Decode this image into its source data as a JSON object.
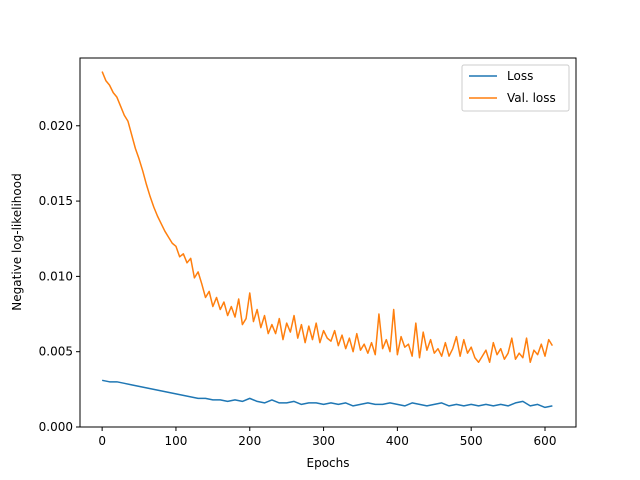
{
  "chart_data": {
    "type": "line",
    "xlabel": "Epochs",
    "ylabel": "Negative log-likelihood",
    "xlim": [
      -30,
      642
    ],
    "ylim": [
      0.0,
      0.0245
    ],
    "xticks": [
      0,
      100,
      200,
      300,
      400,
      500,
      600
    ],
    "xtick_labels": [
      "0",
      "100",
      "200",
      "300",
      "400",
      "500",
      "600"
    ],
    "yticks": [
      0.0,
      0.005,
      0.01,
      0.015,
      0.02
    ],
    "ytick_labels": [
      "0.000",
      "0.005",
      "0.010",
      "0.015",
      "0.020"
    ],
    "grid": false,
    "legend_position": "top-right",
    "series": [
      {
        "name": "Loss",
        "color": "#1f77b4",
        "x": [
          0,
          10,
          20,
          30,
          40,
          50,
          60,
          70,
          80,
          90,
          100,
          110,
          120,
          130,
          140,
          150,
          160,
          170,
          180,
          190,
          200,
          210,
          220,
          230,
          240,
          250,
          260,
          270,
          280,
          290,
          300,
          310,
          320,
          330,
          340,
          350,
          360,
          370,
          380,
          390,
          400,
          410,
          420,
          430,
          440,
          450,
          460,
          470,
          480,
          490,
          500,
          510,
          520,
          530,
          540,
          550,
          560,
          570,
          580,
          590,
          600,
          610
        ],
        "y": [
          0.0031,
          0.003,
          0.003,
          0.0029,
          0.0028,
          0.0027,
          0.0026,
          0.0025,
          0.0024,
          0.0023,
          0.0022,
          0.0021,
          0.002,
          0.0019,
          0.0019,
          0.0018,
          0.0018,
          0.0017,
          0.0018,
          0.0017,
          0.0019,
          0.0017,
          0.0016,
          0.0018,
          0.0016,
          0.0016,
          0.0017,
          0.0015,
          0.0016,
          0.0016,
          0.0015,
          0.0016,
          0.0015,
          0.0016,
          0.0014,
          0.0015,
          0.0016,
          0.0015,
          0.0015,
          0.0016,
          0.0015,
          0.0014,
          0.0016,
          0.0015,
          0.0014,
          0.0015,
          0.0016,
          0.0014,
          0.0015,
          0.0014,
          0.0015,
          0.0014,
          0.0015,
          0.0014,
          0.0015,
          0.0014,
          0.0016,
          0.0017,
          0.0014,
          0.0015,
          0.0013,
          0.0014
        ]
      },
      {
        "name": "Val. loss",
        "color": "#ff7f0e",
        "x": [
          0,
          5,
          10,
          15,
          20,
          25,
          30,
          35,
          40,
          45,
          50,
          55,
          60,
          65,
          70,
          75,
          80,
          85,
          90,
          95,
          100,
          105,
          110,
          115,
          120,
          125,
          130,
          135,
          140,
          145,
          150,
          155,
          160,
          165,
          170,
          175,
          180,
          185,
          190,
          195,
          200,
          205,
          210,
          215,
          220,
          225,
          230,
          235,
          240,
          245,
          250,
          255,
          260,
          265,
          270,
          275,
          280,
          285,
          290,
          295,
          300,
          305,
          310,
          315,
          320,
          325,
          330,
          335,
          340,
          345,
          350,
          355,
          360,
          365,
          370,
          375,
          380,
          385,
          390,
          395,
          400,
          405,
          410,
          415,
          420,
          425,
          430,
          435,
          440,
          445,
          450,
          455,
          460,
          465,
          470,
          475,
          480,
          485,
          490,
          495,
          500,
          505,
          510,
          515,
          520,
          525,
          530,
          535,
          540,
          545,
          550,
          555,
          560,
          565,
          570,
          575,
          580,
          585,
          590,
          595,
          600,
          605,
          610
        ],
        "y": [
          0.0236,
          0.023,
          0.0227,
          0.0222,
          0.0219,
          0.0213,
          0.0207,
          0.0203,
          0.0194,
          0.0185,
          0.0178,
          0.017,
          0.0161,
          0.0153,
          0.0146,
          0.014,
          0.0135,
          0.013,
          0.0126,
          0.0122,
          0.012,
          0.0113,
          0.0115,
          0.0109,
          0.0112,
          0.0099,
          0.0103,
          0.0095,
          0.0086,
          0.009,
          0.008,
          0.0086,
          0.0078,
          0.0083,
          0.0074,
          0.008,
          0.0073,
          0.0085,
          0.0068,
          0.0072,
          0.0089,
          0.007,
          0.0078,
          0.0066,
          0.0074,
          0.0062,
          0.0068,
          0.0062,
          0.0072,
          0.0058,
          0.0069,
          0.0063,
          0.0074,
          0.0059,
          0.0068,
          0.0056,
          0.0067,
          0.0058,
          0.0069,
          0.0056,
          0.0064,
          0.0059,
          0.0057,
          0.0064,
          0.0054,
          0.0061,
          0.0052,
          0.0059,
          0.005,
          0.0062,
          0.0051,
          0.0055,
          0.0049,
          0.0056,
          0.0048,
          0.0075,
          0.0052,
          0.0058,
          0.005,
          0.0078,
          0.0048,
          0.006,
          0.0053,
          0.0055,
          0.0047,
          0.0069,
          0.0046,
          0.0063,
          0.0051,
          0.0058,
          0.0049,
          0.0052,
          0.0047,
          0.0056,
          0.0047,
          0.0052,
          0.006,
          0.0047,
          0.0058,
          0.0049,
          0.0053,
          0.0046,
          0.0043,
          0.0047,
          0.0051,
          0.0043,
          0.0056,
          0.0048,
          0.0052,
          0.0045,
          0.0049,
          0.0059,
          0.0045,
          0.0049,
          0.0046,
          0.0059,
          0.0043,
          0.0051,
          0.0048,
          0.0055,
          0.0047,
          0.0058,
          0.0054
        ]
      }
    ]
  }
}
